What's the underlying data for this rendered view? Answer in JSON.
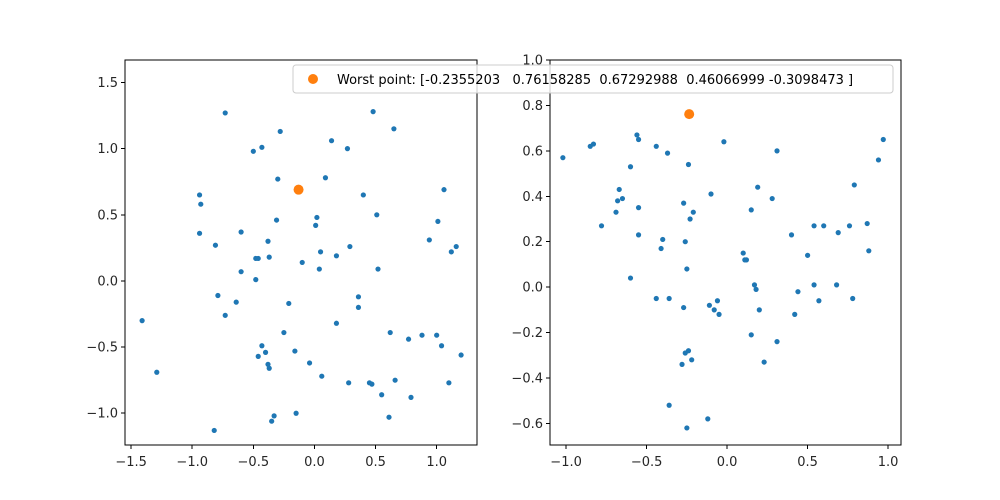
{
  "colors": {
    "series": "#1f77b4",
    "worst": "#ff7f0e",
    "legend_border": "#cccccc"
  },
  "chart_data": [
    {
      "type": "scatter",
      "title": "",
      "xlabel": "",
      "ylabel": "",
      "xlim": [
        -1.55,
        1.33
      ],
      "ylim": [
        -1.24,
        1.67
      ],
      "xticks": [
        -1.5,
        -1.0,
        -0.5,
        0.0,
        0.5,
        1.0
      ],
      "xtick_labels": [
        "−1.5",
        "−1.0",
        "−0.5",
        "0.0",
        "0.5",
        "1.0"
      ],
      "yticks": [
        -1.0,
        -0.5,
        0.0,
        0.5,
        1.0,
        1.5
      ],
      "ytick_labels": [
        "−1.0",
        "−0.5",
        "0.0",
        "0.5",
        "1.0",
        "1.5"
      ],
      "grid": false,
      "legend": {
        "position": "top-right",
        "entries": [
          "Worst point: [-0.2355203   0.76158285  0.67292988  0.46066999 -0.3098473 ]"
        ]
      },
      "series": [
        {
          "role": "points",
          "x": [
            -0.73,
            0.48,
            0.65,
            -0.28,
            -0.43,
            -0.5,
            0.14,
            0.27,
            0.09,
            -0.3,
            -0.94,
            -0.93,
            -0.94,
            -0.81,
            -0.6,
            -0.38,
            -0.46,
            -0.48,
            -0.6,
            -0.48,
            -0.37,
            -0.31,
            -0.21,
            0.02,
            0.01,
            0.4,
            0.51,
            1.06,
            1.01,
            0.94,
            1.16,
            1.12,
            0.05,
            0.18,
            0.29,
            -0.1,
            0.04,
            0.52,
            -0.79,
            -0.64,
            -0.73,
            -1.41,
            -1.29,
            0.18,
            0.36,
            0.36,
            -0.25,
            -0.43,
            -0.46,
            -0.4,
            -0.38,
            -0.37,
            -0.33,
            -0.35,
            -0.15,
            -0.16,
            -0.04,
            0.06,
            0.28,
            0.45,
            0.47,
            0.55,
            0.61,
            0.66,
            0.79,
            0.62,
            0.77,
            0.88,
            1.0,
            1.04,
            1.2,
            1.1,
            -0.82
          ],
          "y": [
            1.27,
            1.28,
            1.15,
            1.13,
            1.01,
            0.98,
            1.06,
            1.0,
            0.78,
            0.77,
            0.65,
            0.58,
            0.36,
            0.27,
            0.37,
            0.3,
            0.17,
            0.17,
            0.07,
            0.01,
            0.18,
            0.46,
            -0.17,
            0.48,
            0.42,
            0.65,
            0.5,
            0.69,
            0.45,
            0.31,
            0.26,
            0.22,
            0.22,
            0.19,
            0.26,
            0.14,
            0.09,
            0.09,
            -0.11,
            -0.16,
            -0.26,
            -0.3,
            -0.69,
            -0.32,
            -0.12,
            -0.2,
            -0.39,
            -0.49,
            -0.57,
            -0.54,
            -0.63,
            -0.66,
            -1.02,
            -1.06,
            -1.0,
            -0.53,
            -0.62,
            -0.72,
            -0.77,
            -0.77,
            -0.78,
            -0.86,
            -1.03,
            -0.75,
            -0.88,
            -0.39,
            -0.44,
            -0.41,
            -0.41,
            -0.49,
            -0.56,
            -0.77,
            -1.13
          ]
        },
        {
          "role": "worst",
          "name": "Worst point: [-0.2355203   0.76158285  0.67292988  0.46066999 -0.3098473 ]",
          "x": [
            -0.13
          ],
          "y": [
            0.69
          ]
        }
      ]
    },
    {
      "type": "scatter",
      "title": "",
      "xlabel": "",
      "ylabel": "",
      "xlim": [
        -1.1,
        1.08
      ],
      "ylim": [
        -0.695,
        1.0
      ],
      "xticks": [
        -1.0,
        -0.5,
        0.0,
        0.5,
        1.0
      ],
      "xtick_labels": [
        "−1.0",
        "−0.5",
        "0.0",
        "0.5",
        "1.0"
      ],
      "yticks": [
        -0.6,
        -0.4,
        -0.2,
        0.0,
        0.2,
        0.4,
        0.6,
        0.8,
        1.0
      ],
      "ytick_labels": [
        "−0.6",
        "−0.4",
        "−0.2",
        "0.0",
        "0.2",
        "0.4",
        "0.6",
        "0.8",
        "1.0"
      ],
      "grid": false,
      "series": [
        {
          "role": "points",
          "x": [
            -1.02,
            -0.85,
            -0.83,
            -0.56,
            -0.55,
            -0.44,
            -0.37,
            -0.6,
            -0.67,
            -0.68,
            -0.65,
            -0.69,
            -0.55,
            -0.78,
            -0.55,
            -0.4,
            -0.41,
            -0.6,
            -0.24,
            -0.02,
            0.31,
            0.19,
            0.28,
            0.15,
            -0.1,
            -0.27,
            -0.21,
            -0.23,
            -0.26,
            -0.25,
            -0.44,
            -0.36,
            -0.27,
            -0.26,
            -0.22,
            -0.24,
            -0.28,
            -0.25,
            -0.36,
            -0.12,
            -0.11,
            -0.08,
            -0.06,
            -0.05,
            0.1,
            0.12,
            0.11,
            0.17,
            0.18,
            0.2,
            0.15,
            0.23,
            0.31,
            0.4,
            0.42,
            0.44,
            0.5,
            0.54,
            0.54,
            0.6,
            0.57,
            0.69,
            0.68,
            0.76,
            0.79,
            0.78,
            0.87,
            0.88,
            0.94,
            0.97
          ],
          "y": [
            0.57,
            0.62,
            0.63,
            0.67,
            0.65,
            0.62,
            0.59,
            0.53,
            0.43,
            0.38,
            0.39,
            0.33,
            0.35,
            0.27,
            0.23,
            0.21,
            0.17,
            0.04,
            0.54,
            0.64,
            0.6,
            0.44,
            0.39,
            0.34,
            0.41,
            0.37,
            0.33,
            0.3,
            0.2,
            0.08,
            -0.05,
            -0.05,
            -0.09,
            -0.29,
            -0.32,
            -0.28,
            -0.34,
            -0.62,
            -0.52,
            -0.58,
            -0.08,
            -0.1,
            -0.06,
            -0.12,
            0.15,
            0.12,
            0.12,
            0.01,
            -0.01,
            -0.1,
            -0.21,
            -0.33,
            -0.24,
            0.23,
            -0.12,
            -0.02,
            0.14,
            0.27,
            0.01,
            0.27,
            -0.06,
            0.24,
            0.01,
            0.27,
            0.45,
            -0.05,
            0.28,
            0.16,
            0.56,
            0.65
          ]
        },
        {
          "role": "worst",
          "x": [
            -0.2355203
          ],
          "y": [
            0.76158285
          ]
        }
      ]
    }
  ]
}
